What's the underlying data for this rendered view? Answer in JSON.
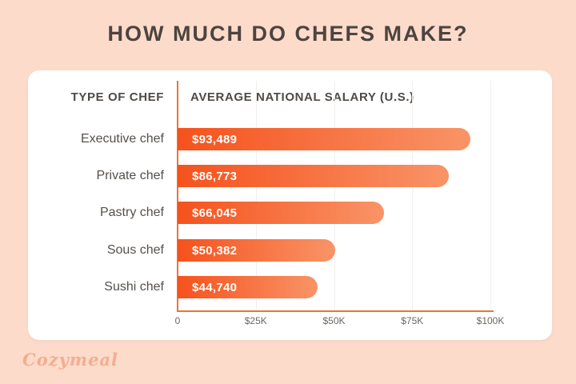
{
  "page": {
    "title": "HOW MUCH DO CHEFS MAKE?",
    "background_color": "#fcdbca",
    "card_color": "#ffffff"
  },
  "table": {
    "col1_header": "TYPE OF CHEF",
    "col2_header": "AVERAGE NATIONAL SALARY (U.S.)"
  },
  "chart_data": {
    "type": "bar",
    "orientation": "horizontal",
    "title": "HOW MUCH DO CHEFS MAKE?",
    "ylabel": "TYPE OF CHEF",
    "xlabel": "AVERAGE NATIONAL SALARY (U.S.)",
    "categories": [
      "Executive chef",
      "Private chef",
      "Pastry chef",
      "Sous chef",
      "Sushi chef"
    ],
    "values": [
      93489,
      86773,
      66045,
      50382,
      44740
    ],
    "value_labels": [
      "$93,489",
      "$86,773",
      "$66,045",
      "$50,382",
      "$44,740"
    ],
    "xlim": [
      0,
      100000
    ],
    "x_ticks": [
      "0",
      "$25K",
      "$50K",
      "$75K",
      "$100K"
    ],
    "x_tick_values": [
      0,
      25000,
      50000,
      75000,
      100000
    ],
    "grid": "faint vertical gridlines at ticks",
    "legend": "none",
    "bar_gradient_start": "#f5521d",
    "bar_gradient_end": "#f99467",
    "axis_color": "#ee7433"
  },
  "footer": {
    "logo": "Cozymeal"
  }
}
